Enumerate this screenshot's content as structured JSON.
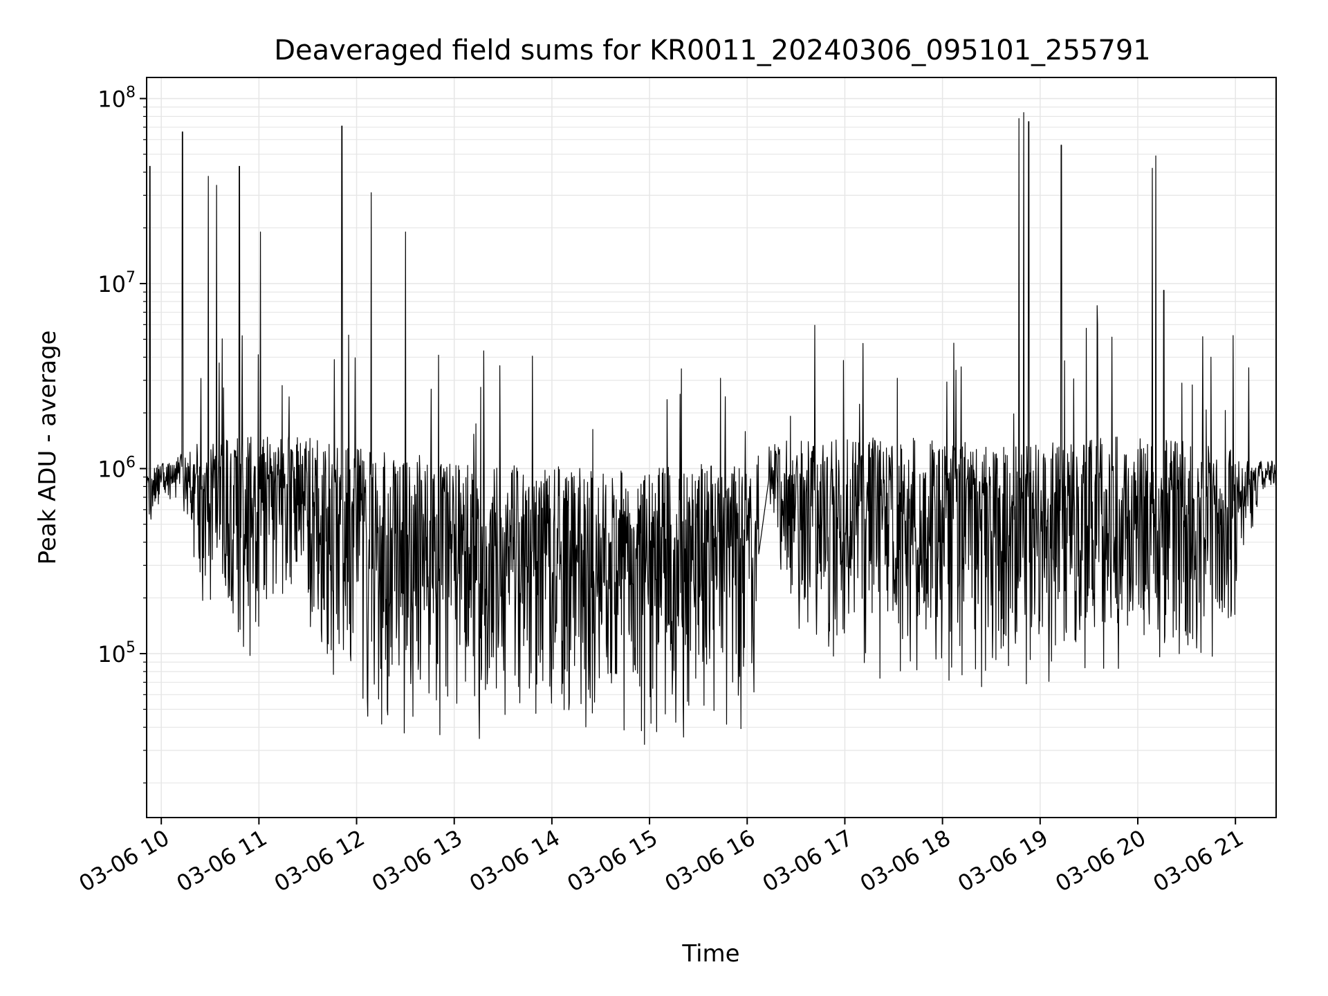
{
  "chart_data": {
    "type": "line",
    "title": "Deaveraged field sums for KR0011_20240306_095101_255791",
    "xlabel": "Time",
    "ylabel": "Peak ADU - average",
    "yscale": "log",
    "ylim": [
      13000,
      130000000
    ],
    "xlim": [
      "2024-03-06 09:51",
      "2024-03-06 21:25"
    ],
    "grid": "major-and-minor",
    "line_color": "#000000",
    "x_tick_labels": [
      "03-06 10",
      "03-06 11",
      "03-06 12",
      "03-06 13",
      "03-06 14",
      "03-06 15",
      "03-06 16",
      "03-06 17",
      "03-06 18",
      "03-06 19",
      "03-06 20",
      "03-06 21"
    ],
    "y_tick_labels": [
      {
        "base": "10",
        "exp": "5"
      },
      {
        "base": "10",
        "exp": "6"
      },
      {
        "base": "10",
        "exp": "7"
      },
      {
        "base": "10",
        "exp": "8"
      }
    ],
    "envelope": {
      "description_units": "hour of day vs Peak ADU - average",
      "hours": [
        9.87,
        10.2,
        10.4,
        10.7,
        11.0,
        11.4,
        11.7,
        12.0,
        12.5,
        13.0,
        13.5,
        14.0,
        14.5,
        15.0,
        15.5,
        15.8,
        16.1,
        16.25,
        16.5,
        17.0,
        17.5,
        18.0,
        18.5,
        19.0,
        19.5,
        19.85,
        20.0,
        20.3,
        20.6,
        20.9,
        21.25
      ],
      "upper": [
        1000000,
        1200000,
        1400000,
        1500000,
        1500000,
        1500000,
        1400000,
        1300000,
        1200000,
        1150000,
        1100000,
        1050000,
        1000000,
        1000000,
        1050000,
        1100000,
        1200000,
        1400000,
        1450000,
        1500000,
        1500000,
        1450000,
        1400000,
        1400000,
        1450000,
        1500000,
        1500000,
        1450000,
        1400000,
        1300000,
        1100000
      ],
      "lower": [
        500000,
        700000,
        150000,
        90000,
        90000,
        250000,
        50000,
        40000,
        35000,
        30000,
        28000,
        27000,
        27000,
        26000,
        27000,
        30000,
        40000,
        500000,
        90000,
        70000,
        60000,
        60000,
        55000,
        55000,
        60000,
        60000,
        60000,
        60000,
        60000,
        90000,
        700000
      ]
    },
    "spikes": [
      {
        "x": "2024-03-06 09:53",
        "y": 43000000
      },
      {
        "x": "2024-03-06 10:13",
        "y": 66000000
      },
      {
        "x": "2024-03-06 10:29",
        "y": 38000000
      },
      {
        "x": "2024-03-06 10:34",
        "y": 34000000
      },
      {
        "x": "2024-03-06 10:48",
        "y": 43000000
      },
      {
        "x": "2024-03-06 11:01",
        "y": 19000000
      },
      {
        "x": "2024-03-06 11:51",
        "y": 71000000
      },
      {
        "x": "2024-03-06 12:09",
        "y": 31000000
      },
      {
        "x": "2024-03-06 12:30",
        "y": 19000000
      },
      {
        "x": "2024-03-06 13:28",
        "y": 3600000
      },
      {
        "x": "2024-03-06 18:47",
        "y": 78000000
      },
      {
        "x": "2024-03-06 18:50",
        "y": 84000000
      },
      {
        "x": "2024-03-06 18:53",
        "y": 75000000
      },
      {
        "x": "2024-03-06 19:13",
        "y": 56000000
      },
      {
        "x": "2024-03-06 19:35",
        "y": 7600000
      },
      {
        "x": "2024-03-06 20:09",
        "y": 42000000
      },
      {
        "x": "2024-03-06 20:11",
        "y": 49000000
      },
      {
        "x": "2024-03-06 20:16",
        "y": 9200000
      }
    ]
  }
}
